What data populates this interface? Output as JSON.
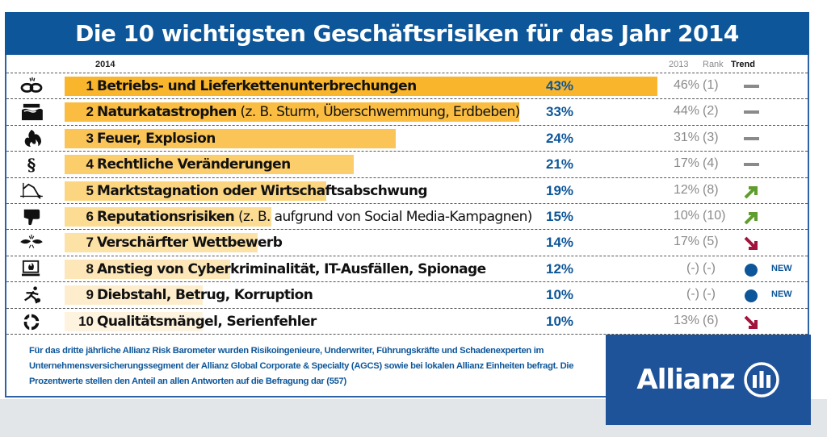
{
  "title": "Die 10 wichtigsten Geschäftsrisiken für das Jahr 2014",
  "columns": {
    "current_year": "2014",
    "previous_year": "2013",
    "rank": "Rank",
    "trend": "Trend"
  },
  "colors": {
    "title_bg": "#0d5699",
    "bar_gradient": [
      "#f9b52c",
      "#fcd98a",
      "#fef3df"
    ],
    "pct_text": "#0d5699",
    "trend_flat": "#8a8a8a",
    "trend_up": "#5f9e2e",
    "trend_down": "#a3143c",
    "new_dot": "#0d5699"
  },
  "chart_data": {
    "type": "bar",
    "orientation": "horizontal",
    "title": "Die 10 wichtigsten Geschäftsrisiken für das Jahr 2014",
    "xlabel": "",
    "ylabel": "",
    "unit": "%",
    "xlim": [
      0,
      43
    ],
    "categories": [
      "Betriebs- und Lieferkettenunterbrechungen",
      "Naturkatastrophen (z. B. Sturm, Überschwemmung, Erdbeben)",
      "Feuer, Explosion",
      "Rechtliche Veränderungen",
      "Marktstagnation oder Wirtschaftsabschwung",
      "Reputationsrisiken (z. B. aufgrund von Social Media-Kampagnen)",
      "Verschärfter Wettbewerb",
      "Anstieg von Cyberkriminalität, IT-Ausfällen, Spionage",
      "Diebstahl, Betrug, Korruption",
      "Qualitätsmängel, Serienfehler"
    ],
    "series": [
      {
        "name": "2014",
        "values": [
          43,
          33,
          24,
          21,
          19,
          15,
          14,
          12,
          10,
          10
        ]
      },
      {
        "name": "2013",
        "values": [
          46,
          44,
          31,
          17,
          12,
          10,
          17,
          null,
          null,
          13
        ]
      }
    ],
    "rank_2013": [
      1,
      2,
      3,
      4,
      8,
      10,
      5,
      null,
      null,
      6
    ]
  },
  "rows": [
    {
      "rank": "1",
      "main": "Betriebs- und Lieferkettenunterbrechungen",
      "sub": "",
      "pct": "43%",
      "value": 43,
      "prev": "46%",
      "prev_rank": "(1)",
      "trend": "flat",
      "new": "",
      "icon": "broken-chain-icon"
    },
    {
      "rank": "2",
      "main": "Naturkatastrophen",
      "sub": " (z. B. Sturm, Überschwemmung, Erdbeben)",
      "pct": "33%",
      "value": 33,
      "prev": "44%",
      "prev_rank": "(2)",
      "trend": "flat",
      "new": "",
      "icon": "flood-icon"
    },
    {
      "rank": "3",
      "main": "Feuer, Explosion",
      "sub": "",
      "pct": "24%",
      "value": 24,
      "prev": "31%",
      "prev_rank": "(3)",
      "trend": "flat",
      "new": "",
      "icon": "fire-icon"
    },
    {
      "rank": "4",
      "main": "Rechtliche Veränderungen",
      "sub": "",
      "pct": "21%",
      "value": 21,
      "prev": "17%",
      "prev_rank": "(4)",
      "trend": "flat",
      "new": "",
      "icon": "paragraph-icon"
    },
    {
      "rank": "5",
      "main": "Marktstagnation oder Wirtschaftsabschwung",
      "sub": "",
      "pct": "19%",
      "value": 19,
      "prev": "12%",
      "prev_rank": "(8)",
      "trend": "up",
      "new": "",
      "icon": "declining-chart-icon"
    },
    {
      "rank": "6",
      "main": "Reputationsrisiken",
      "sub": " (z. B. aufgrund von Social Media-Kampagnen)",
      "pct": "15%",
      "value": 15,
      "prev": "10%",
      "prev_rank": "(10)",
      "trend": "up",
      "new": "",
      "icon": "thumbs-down-icon"
    },
    {
      "rank": "7",
      "main": "Verschärfter Wettbewerb",
      "sub": "",
      "pct": "14%",
      "value": 14,
      "prev": "17%",
      "prev_rank": "(5)",
      "trend": "down",
      "new": "",
      "icon": "competition-icon"
    },
    {
      "rank": "8",
      "main": "Anstieg von Cyberkriminalität, IT-Ausfällen, Spionage",
      "sub": "",
      "pct": "12%",
      "value": 12,
      "prev": "(-)",
      "prev_rank": "(-)",
      "trend": "new",
      "new": "NEW",
      "icon": "computer-fire-icon"
    },
    {
      "rank": "9",
      "main": "Diebstahl, Betrug, Korruption",
      "sub": "",
      "pct": "10%",
      "value": 10,
      "prev": "(-)",
      "prev_rank": "(-)",
      "trend": "new",
      "new": "NEW",
      "icon": "running-thief-icon"
    },
    {
      "rank": "10",
      "main": "Qualitätsmängel, Serienfehler",
      "sub": "",
      "pct": "10%",
      "value": 10,
      "prev": "13%",
      "prev_rank": "(6)",
      "trend": "down",
      "new": "",
      "icon": "recycle-icon"
    }
  ],
  "footnote": "Für das dritte jährliche Allianz Risk Barometer wurden Risikoingenieure, Underwriter, Führungskräfte und Schadenexperten im Unternehmensversicherungssegment der Allianz Global Corporate & Specialty (AGCS) sowie bei lokalen Allianz Einheiten befragt. Die Prozentwerte stellen den Anteil an allen Antworten auf die Befragung dar (557)",
  "logo": {
    "text": "Allianz",
    "icon": "allianz-eagle-mark-icon"
  }
}
